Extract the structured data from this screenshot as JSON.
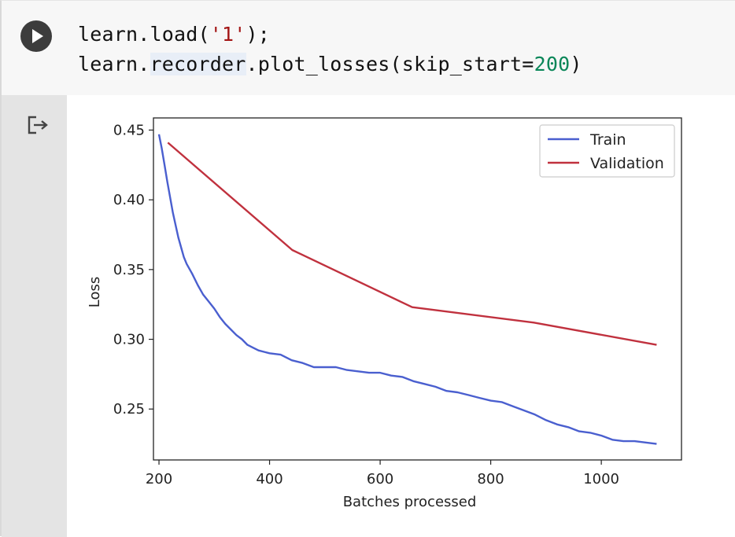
{
  "code_cell": {
    "run_button": "run-icon",
    "line1": {
      "prefix": "learn.load(",
      "string": "'1'",
      "suffix": ");"
    },
    "line2": {
      "prefix": "learn.",
      "highlighted": "recorder",
      "middle": ".plot_losses(skip_start=",
      "number": "200",
      "suffix": ")"
    }
  },
  "output": {
    "icon": "output-redirect-icon"
  },
  "chart_data": {
    "type": "line",
    "xlabel": "Batches processed",
    "ylabel": "Loss",
    "xlim": [
      190,
      1145
    ],
    "ylim": [
      0.2135,
      0.4587
    ],
    "xticks": [
      200,
      400,
      600,
      800,
      1000
    ],
    "yticks": [
      0.25,
      0.3,
      0.35,
      0.4,
      0.45
    ],
    "ytick_labels": [
      "0.25",
      "0.30",
      "0.35",
      "0.40",
      "0.45"
    ],
    "xtick_labels": [
      "200",
      "400",
      "600",
      "800",
      "1000"
    ],
    "legend_position": "top-right",
    "series": [
      {
        "name": "Train",
        "color": "#4a5fcf",
        "x": [
          200,
          205,
          210,
          215,
          220,
          225,
          230,
          235,
          240,
          245,
          250,
          260,
          270,
          280,
          290,
          300,
          310,
          320,
          330,
          340,
          350,
          360,
          370,
          380,
          390,
          400,
          420,
          440,
          460,
          480,
          500,
          520,
          540,
          560,
          580,
          600,
          620,
          640,
          660,
          680,
          700,
          720,
          740,
          760,
          780,
          800,
          820,
          840,
          860,
          880,
          900,
          920,
          940,
          960,
          980,
          1000,
          1020,
          1040,
          1060,
          1080,
          1100
        ],
        "y": [
          0.447,
          0.437,
          0.425,
          0.413,
          0.402,
          0.391,
          0.382,
          0.373,
          0.366,
          0.359,
          0.354,
          0.347,
          0.339,
          0.332,
          0.327,
          0.322,
          0.316,
          0.311,
          0.307,
          0.303,
          0.3,
          0.296,
          0.294,
          0.292,
          0.291,
          0.29,
          0.289,
          0.285,
          0.283,
          0.28,
          0.28,
          0.28,
          0.278,
          0.277,
          0.276,
          0.276,
          0.274,
          0.273,
          0.27,
          0.268,
          0.266,
          0.263,
          0.262,
          0.26,
          0.258,
          0.256,
          0.255,
          0.252,
          0.249,
          0.246,
          0.242,
          0.239,
          0.237,
          0.234,
          0.233,
          0.231,
          0.228,
          0.227,
          0.227,
          0.226,
          0.225
        ]
      },
      {
        "name": "Validation",
        "color": "#c0313e",
        "x": [
          216,
          441,
          658,
          878,
          1100
        ],
        "y": [
          0.441,
          0.364,
          0.323,
          0.312,
          0.296
        ]
      }
    ]
  }
}
